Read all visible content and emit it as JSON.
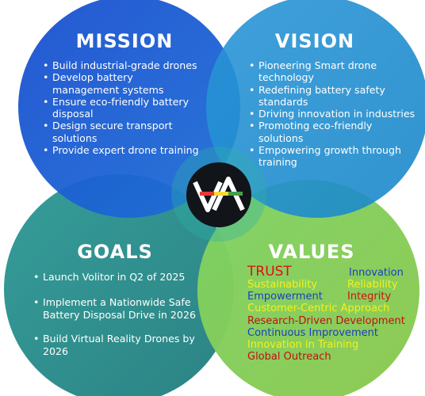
{
  "mission": {
    "title": "MISSION",
    "color": "#1d5ccd",
    "items": [
      "Build industrial-grade drones",
      "Develop battery management systems",
      "Ensure eco-friendly battery disposal",
      "Design secure transport solutions",
      "Provide expert drone training"
    ]
  },
  "vision": {
    "title": "VISION",
    "color": "#1f8fd0",
    "items": [
      "Pioneering Smart drone technology",
      "Redefining battery safety standards",
      "Driving innovation in industries",
      "Promoting eco-friendly solutions",
      "Empowering growth through training"
    ]
  },
  "goals": {
    "title": "GOALS",
    "color": "#2a8e92",
    "items": [
      "Launch Volitor in Q2 of 2025",
      "Implement a Nationwide Safe Battery Disposal Drive in 2026",
      "Build Virtual Reality Drones by 2026"
    ]
  },
  "values": {
    "title": "VALUES",
    "color": "#84c95c",
    "words": [
      {
        "text": "TRUST",
        "color": "#e01010"
      },
      {
        "text": "Innovation",
        "color": "#1a3fbf"
      },
      {
        "text": "Sustainability",
        "color": "#f2f21a"
      },
      {
        "text": "Reliability",
        "color": "#f2f21a"
      },
      {
        "text": "Empowerment",
        "color": "#1a3fbf"
      },
      {
        "text": "Integrity",
        "color": "#d01010"
      },
      {
        "text": "Customer-Centric Approach",
        "color": "#f2f21a"
      },
      {
        "text": "Research-Driven Development",
        "color": "#c01010"
      },
      {
        "text": "Continuous Improvement",
        "color": "#1a3fbf"
      },
      {
        "text": "Innovation in Training",
        "color": "#f2f21a"
      },
      {
        "text": "Global Outreach",
        "color": "#c01010"
      }
    ]
  },
  "logo": {
    "name": "VA-monogram-logo",
    "stripe_colors": [
      "#e53935",
      "#fdd835",
      "#43a047"
    ]
  }
}
